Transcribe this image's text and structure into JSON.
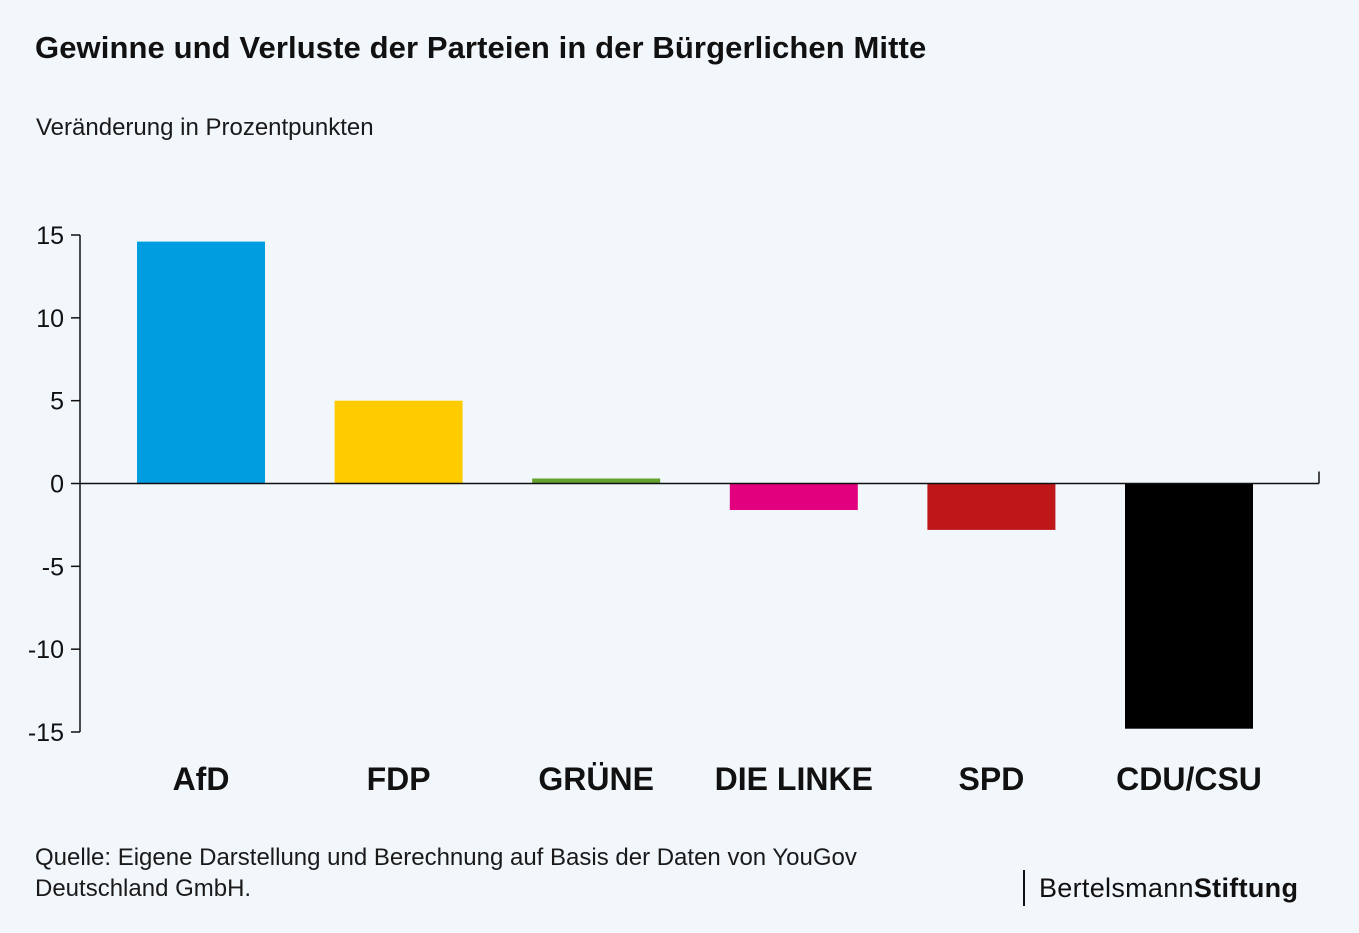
{
  "header": {
    "title": "Gewinne und Verluste der Parteien in der Bürgerlichen Mitte"
  },
  "chart_data": {
    "type": "bar",
    "title": "Gewinne und Verluste der Parteien in der Bürgerlichen Mitte",
    "ylabel": "Veränderung in Prozentpunkten",
    "xlabel": "",
    "ylim": [
      -15,
      15
    ],
    "yticks": [
      15,
      10,
      5,
      0,
      -5,
      -10,
      -15
    ],
    "ytick_labels": [
      "15",
      "10",
      "5",
      "0",
      "-5",
      "-10",
      "-15"
    ],
    "categories": [
      "AfD",
      "FDP",
      "GRÜNE",
      "DIE LINKE",
      "SPD",
      "CDU/CSU"
    ],
    "values": [
      14.6,
      5.0,
      0.3,
      -1.6,
      -2.8,
      -14.8
    ],
    "colors": [
      "#009ee0",
      "#ffcc00",
      "#64a12d",
      "#e3007f",
      "#be1619",
      "#000000"
    ],
    "grid": false,
    "legend": "none"
  },
  "footer": {
    "source": "Quelle: Eigene Darstellung und Berechnung auf Basis der Daten von YouGov Deutschland GmbH.",
    "logo_regular": "Bertelsmann",
    "logo_bold": "Stiftung"
  }
}
